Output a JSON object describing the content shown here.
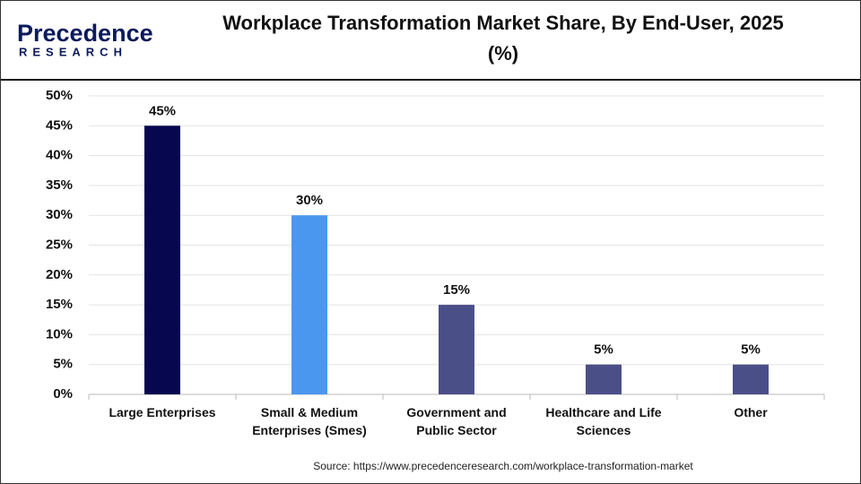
{
  "logo": {
    "name": "Precedence",
    "tagline": "RESEARCH"
  },
  "chart_data": {
    "type": "bar",
    "title": "Workplace Transformation Market Share, By End-User, 2025 (%)",
    "categories": [
      "Large Enterprises",
      "Small & Medium Enterprises (Smes)",
      "Government and Public Sector",
      "Healthcare and Life Sciences",
      "Other"
    ],
    "values": [
      45,
      30,
      15,
      5,
      5
    ],
    "value_labels": [
      "45%",
      "30%",
      "15%",
      "5%",
      "5%"
    ],
    "colors": [
      "#07074f",
      "#4a97f0",
      "#4b4f88",
      "#4b4f88",
      "#4b4f88"
    ],
    "ylim": [
      0,
      50
    ],
    "yticks": [
      {
        "value": 0,
        "label": "0%"
      },
      {
        "value": 5,
        "label": "5%"
      },
      {
        "value": 10,
        "label": "10%"
      },
      {
        "value": 15,
        "label": "15%"
      },
      {
        "value": 20,
        "label": "20%"
      },
      {
        "value": 25,
        "label": "25%"
      },
      {
        "value": 30,
        "label": "30%"
      },
      {
        "value": 35,
        "label": "35%"
      },
      {
        "value": 40,
        "label": "40%"
      },
      {
        "value": 45,
        "label": "45%"
      },
      {
        "value": 50,
        "label": "50%"
      }
    ],
    "grid": true,
    "source": "Source: https://www.precedenceresearch.com/workplace-transformation-market"
  }
}
